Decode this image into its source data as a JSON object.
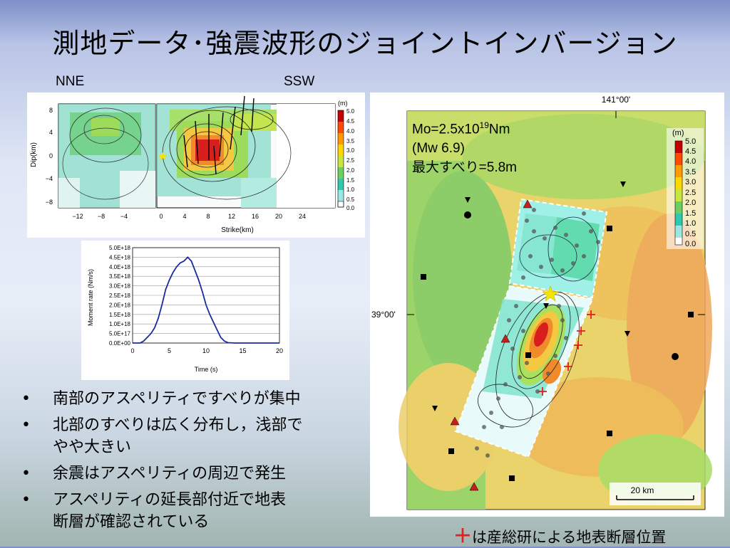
{
  "title": "測地データ･強震波形のジョイントインバージョン",
  "labels": {
    "nne": "NNE",
    "ssw": "SSW"
  },
  "slip_panel": {
    "ylabel": "Dip(km)",
    "xlabel": "Strike(km)",
    "y_ticks": [
      "8",
      "4",
      "0",
      "−4",
      "−8"
    ],
    "x_ticks_left": [
      "−12",
      "−8",
      "−4"
    ],
    "x_ticks_right": [
      "0",
      "4",
      "8",
      "12",
      "16",
      "20",
      "24"
    ],
    "colorbar_unit": "(m)",
    "colorbar_ticks": [
      "5.0",
      "4.5",
      "4.0",
      "3.5",
      "3.0",
      "2.5",
      "2.0",
      "1.5",
      "1.0",
      "0.5",
      "0.0"
    ]
  },
  "moment_chart": {
    "ylabel": "Moment rate (Nm/s)",
    "xlabel": "Time (s)",
    "y_ticks": [
      "5.0E+18",
      "4.5E+18",
      "4.0E+18",
      "3.5E+18",
      "3.0E+18",
      "2.5E+18",
      "2.0E+18",
      "1.5E+18",
      "1.0E+18",
      "5.0E+17",
      "0.0E+00"
    ],
    "x_ticks": [
      "0",
      "5",
      "10",
      "15",
      "20"
    ]
  },
  "chart_data": {
    "type": "line",
    "xlabel": "Time (s)",
    "ylabel": "Moment rate (Nm/s)",
    "xlim": [
      0,
      20
    ],
    "ylim": [
      0,
      5e+18
    ],
    "x": [
      0,
      1,
      1.5,
      2,
      2.5,
      3,
      3.5,
      4,
      4.5,
      5,
      5.5,
      6,
      6.5,
      7,
      7.5,
      8,
      8.5,
      9,
      9.5,
      10,
      10.5,
      11,
      11.5,
      12,
      12.5,
      13,
      14,
      15,
      16,
      17,
      18,
      19,
      20
    ],
    "values": [
      0,
      0,
      1e+17,
      3e+17,
      5e+17,
      8e+17,
      1.3e+18,
      2e+18,
      2.8e+18,
      3.3e+18,
      3.7e+18,
      4e+18,
      4.2e+18,
      4.3e+18,
      4.5e+18,
      4.3e+18,
      3.8e+18,
      3.3e+18,
      2.7e+18,
      2e+18,
      1.5e+18,
      1.1e+18,
      7e+17,
      3e+17,
      1e+17,
      2e+16,
      0,
      0,
      0,
      0,
      0,
      0,
      0
    ]
  },
  "map": {
    "lon_label": "141°00'",
    "lat_label": "39°00'",
    "mo_prefix": "Mo=2.5x10",
    "mo_exp": "19",
    "mo_suffix": "Nm",
    "mw": "(Mw 6.9)",
    "max_slip": "最大すべり=5.8m",
    "colorbar_unit": "(m)",
    "colorbar_ticks": [
      "5.0",
      "4.5",
      "4.0",
      "3.5",
      "3.0",
      "2.5",
      "2.0",
      "1.5",
      "1.0",
      "0.5",
      "0.0"
    ],
    "scale": "20 km"
  },
  "bullets": [
    "南部のアスペリティですべりが集中",
    "北部のすべりは広く分布し，浅部でやや大きい",
    "余震はアスペリティの周辺で発生",
    "アスペリティの延長部付近で地表断層が確認されている"
  ],
  "bullet_lines": [
    [
      "南部のアスペリティですべりが集中"
    ],
    [
      "北部のすべりは広く分布し，浅部で",
      "やや大きい"
    ],
    [
      "余震はアスペリティの周辺で発生"
    ],
    [
      "アスペリティの延長部付近で地表",
      "断層が確認されている"
    ]
  ],
  "note": {
    "plus": "＋",
    "text": "は産総研による地表断層位置"
  },
  "colors": {
    "accent_red": "#e02020",
    "star": "#f5e400"
  }
}
